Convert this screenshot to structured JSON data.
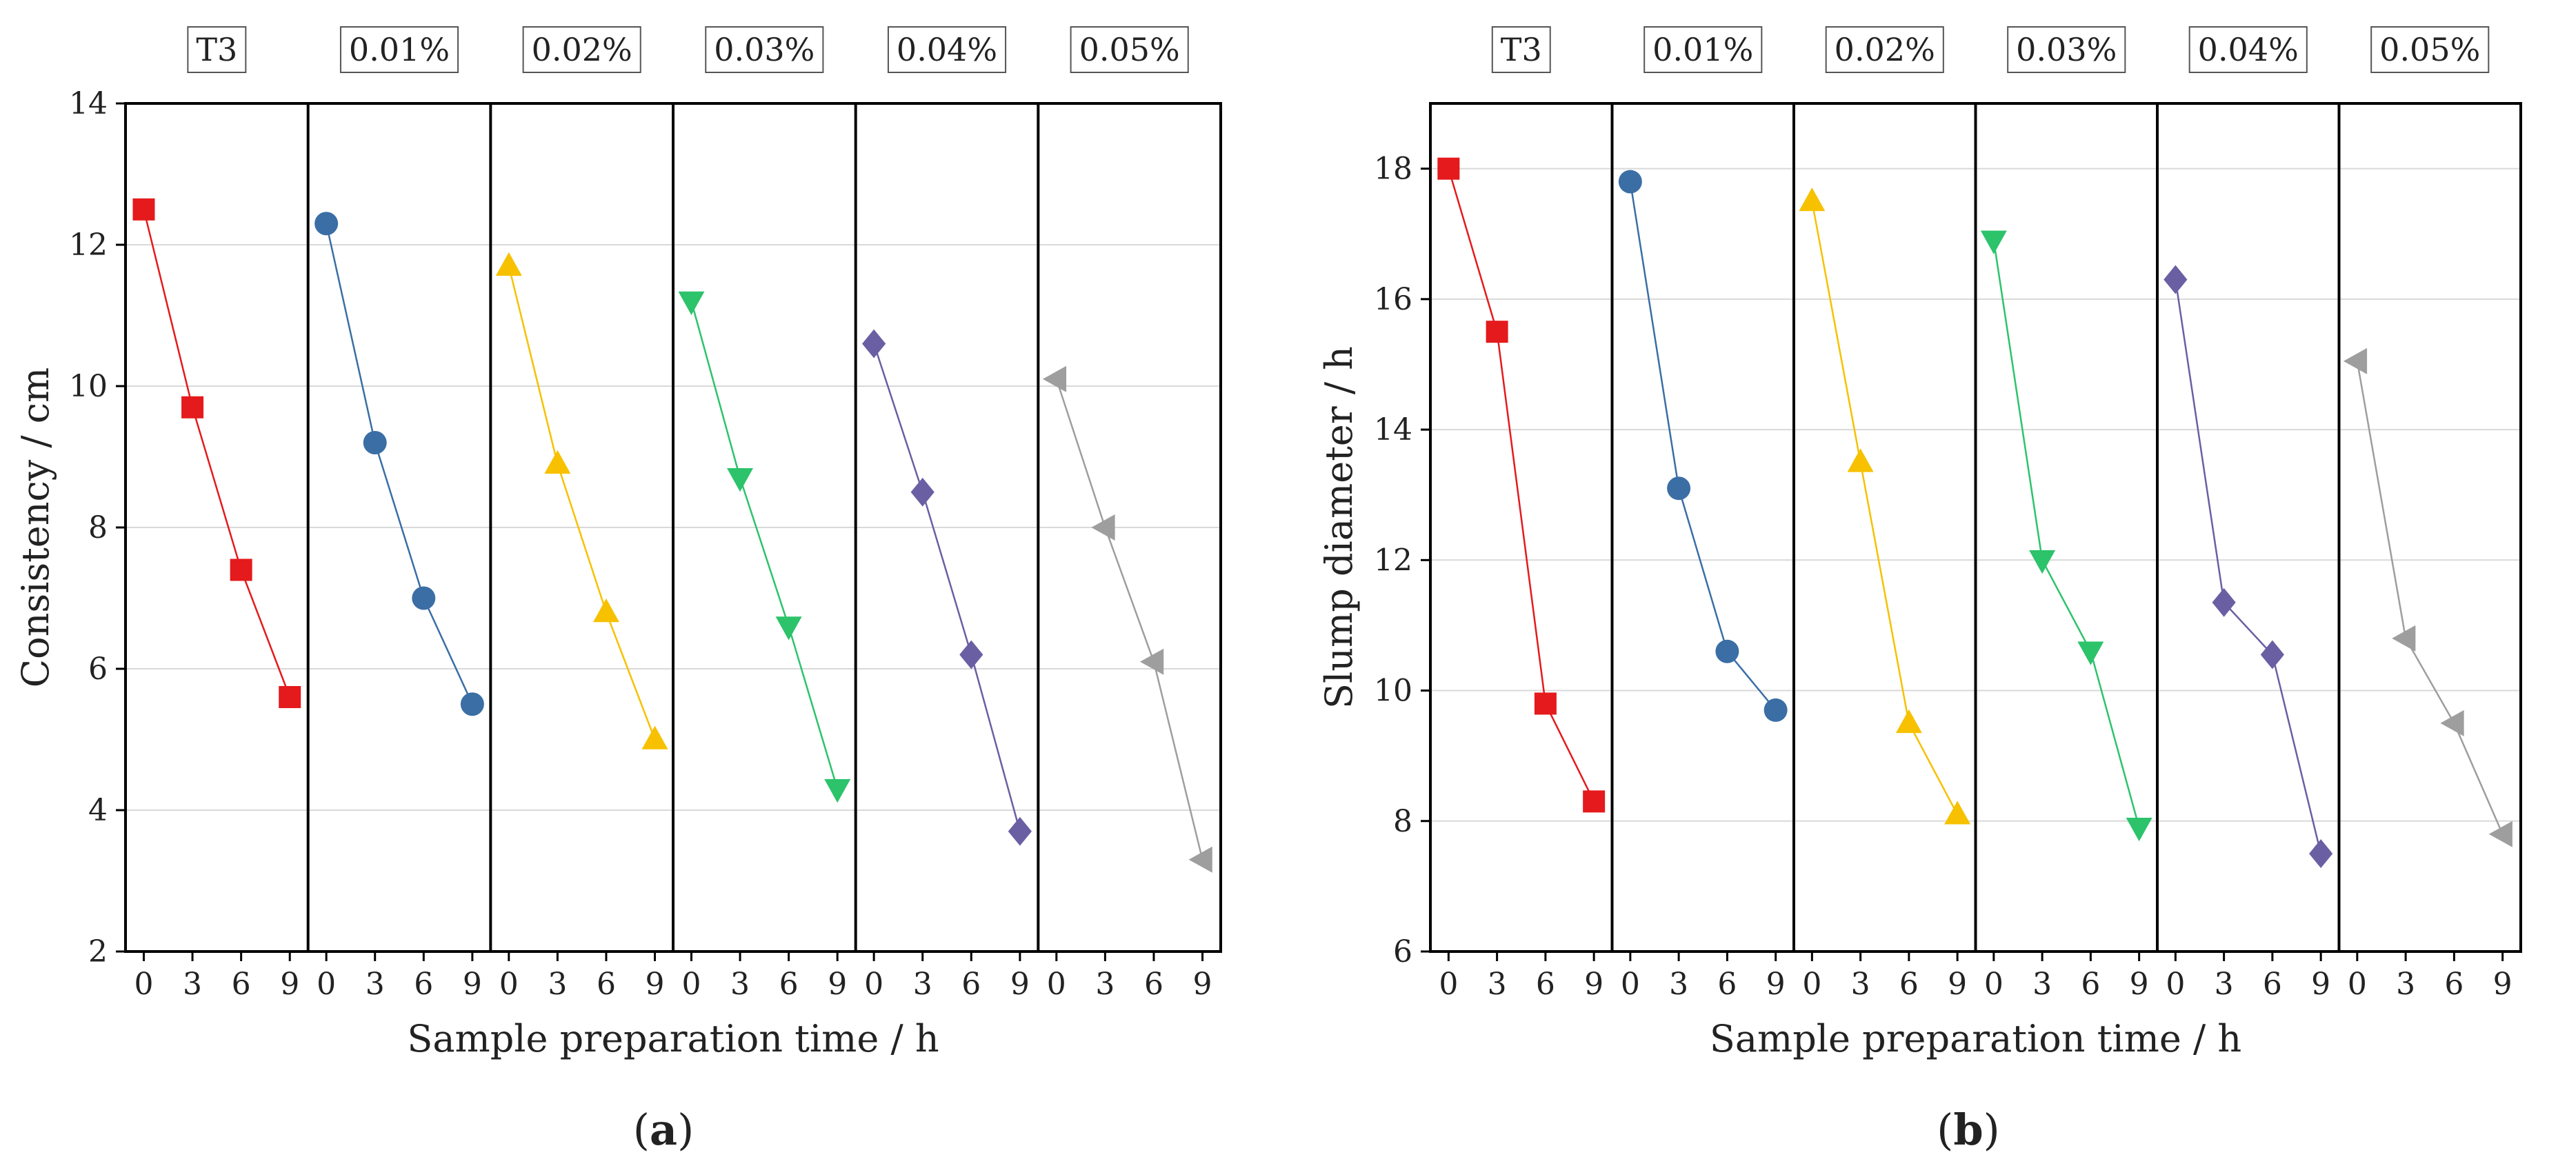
{
  "chart_data": [
    {
      "type": "line",
      "caption": "(a)",
      "ylabel": "Consistency / cm",
      "xlabel": "Sample preparation time / h",
      "ylim": [
        2,
        14
      ],
      "yticks": [
        2,
        4,
        6,
        8,
        10,
        12,
        14
      ],
      "xticks": [
        0,
        3,
        6,
        9
      ],
      "grid": true,
      "groups": [
        "T3",
        "0.01%",
        "0.02%",
        "0.03%",
        "0.04%",
        "0.05%"
      ],
      "series": [
        {
          "group": "T3",
          "color": "#e41a1c",
          "marker": "square",
          "x": [
            0,
            3,
            6,
            9
          ],
          "y": [
            12.5,
            9.7,
            7.4,
            5.6
          ]
        },
        {
          "group": "0.01%",
          "color": "#3a6ea5",
          "marker": "circle",
          "x": [
            0,
            3,
            6,
            9
          ],
          "y": [
            12.3,
            9.2,
            7.0,
            5.5
          ]
        },
        {
          "group": "0.02%",
          "color": "#f7c100",
          "marker": "triangle-up",
          "x": [
            0,
            3,
            6,
            9
          ],
          "y": [
            11.7,
            8.9,
            6.8,
            5.0
          ]
        },
        {
          "group": "0.03%",
          "color": "#2cc36b",
          "marker": "triangle-down",
          "x": [
            0,
            3,
            6,
            9
          ],
          "y": [
            11.2,
            8.7,
            6.6,
            4.3
          ]
        },
        {
          "group": "0.04%",
          "color": "#6a5fa3",
          "marker": "diamond",
          "x": [
            0,
            3,
            6,
            9
          ],
          "y": [
            10.6,
            8.5,
            6.2,
            3.7
          ]
        },
        {
          "group": "0.05%",
          "color": "#9e9e9e",
          "marker": "triangle-left",
          "x": [
            0,
            3,
            6,
            9
          ],
          "y": [
            10.1,
            8.0,
            6.1,
            3.3
          ]
        }
      ]
    },
    {
      "type": "line",
      "caption": "(b)",
      "ylabel": "Slump diameter / h",
      "xlabel": "Sample preparation time / h",
      "ylim": [
        6,
        19
      ],
      "yticks": [
        6,
        8,
        10,
        12,
        14,
        16,
        18
      ],
      "xticks": [
        0,
        3,
        6,
        9
      ],
      "grid": true,
      "groups": [
        "T3",
        "0.01%",
        "0.02%",
        "0.03%",
        "0.04%",
        "0.05%"
      ],
      "series": [
        {
          "group": "T3",
          "color": "#e41a1c",
          "marker": "square",
          "x": [
            0,
            3,
            6,
            9
          ],
          "y": [
            18.0,
            15.5,
            9.8,
            8.3
          ]
        },
        {
          "group": "0.01%",
          "color": "#3a6ea5",
          "marker": "circle",
          "x": [
            0,
            3,
            6,
            9
          ],
          "y": [
            17.8,
            13.1,
            10.6,
            9.7
          ]
        },
        {
          "group": "0.02%",
          "color": "#f7c100",
          "marker": "triangle-up",
          "x": [
            0,
            3,
            6,
            9
          ],
          "y": [
            17.5,
            13.5,
            9.5,
            8.1
          ]
        },
        {
          "group": "0.03%",
          "color": "#2cc36b",
          "marker": "triangle-down",
          "x": [
            0,
            3,
            6,
            9
          ],
          "y": [
            16.9,
            12.0,
            10.6,
            7.9
          ]
        },
        {
          "group": "0.04%",
          "color": "#6a5fa3",
          "marker": "diamond",
          "x": [
            0,
            3,
            6,
            9
          ],
          "y": [
            16.3,
            11.35,
            10.55,
            7.5
          ]
        },
        {
          "group": "0.05%",
          "color": "#9e9e9e",
          "marker": "triangle-left",
          "x": [
            0,
            3,
            6,
            9
          ],
          "y": [
            15.05,
            10.8,
            9.5,
            7.8
          ]
        }
      ]
    }
  ]
}
